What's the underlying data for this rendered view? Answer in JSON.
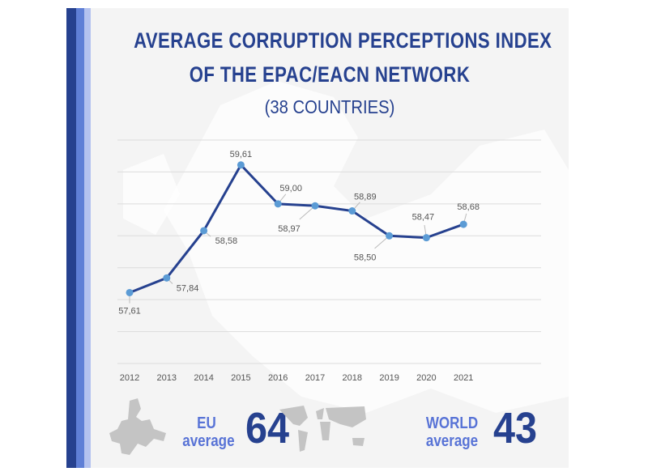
{
  "title_line1": "AVERAGE CORRUPTION PERCEPTIONS INDEX",
  "title_line2": "OF THE EPAC/EACN NETWORK",
  "subtitle": "(38 COUNTRIES)",
  "colors": {
    "line": "#26418f",
    "marker": "#5b9bd5",
    "accent_dark": "#26418f",
    "accent_mid": "#5f7fd6",
    "accent_light": "#b4c2ef"
  },
  "chart_data": {
    "type": "line",
    "title": "AVERAGE CORRUPTION PERCEPTIONS INDEX OF THE EPAC/EACN NETWORK (38 COUNTRIES)",
    "categories": [
      "2012",
      "2013",
      "2014",
      "2015",
      "2016",
      "2017",
      "2018",
      "2019",
      "2020",
      "2021"
    ],
    "values": [
      57.61,
      57.84,
      58.58,
      59.61,
      59.0,
      58.97,
      58.89,
      58.5,
      58.47,
      58.68
    ],
    "data_labels": [
      "57,61",
      "57,84",
      "58,58",
      "59,61",
      "59,00",
      "58,97",
      "58,89",
      "58,50",
      "58,47",
      "58,68"
    ],
    "ylim": [
      56.5,
      60
    ],
    "ytick_step": 0.5,
    "y_tick_labels_shown": false,
    "grid": true,
    "xlabel": "",
    "ylabel": ""
  },
  "stats": {
    "eu": {
      "label_line1": "EU",
      "label_line2": "average",
      "value": "64",
      "icon": "europe-map-icon"
    },
    "world": {
      "label_line1": "WORLD",
      "label_line2": "average",
      "value": "43",
      "icon": "world-map-icon"
    }
  }
}
